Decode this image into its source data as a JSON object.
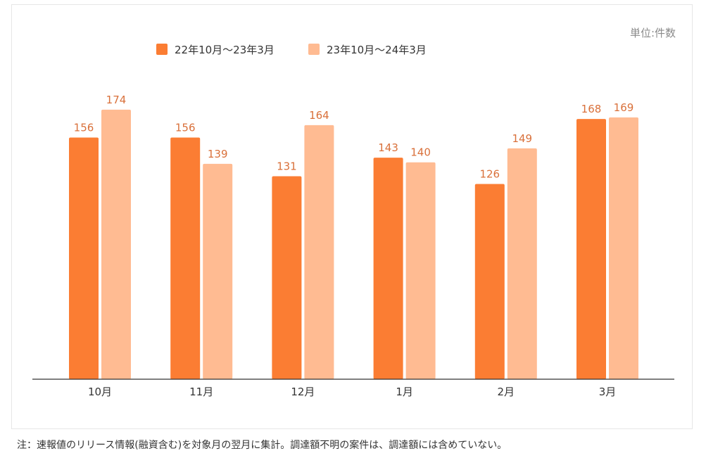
{
  "chart_data": {
    "type": "bar",
    "unit_label": "単位:件数",
    "categories": [
      "10月",
      "11月",
      "12月",
      "1月",
      "2月",
      "3月"
    ],
    "series": [
      {
        "name": "22年10月～23年3月",
        "values": [
          156,
          156,
          131,
          143,
          126,
          168
        ],
        "color": "#fb7d33"
      },
      {
        "name": "23年10月～24年3月",
        "values": [
          174,
          139,
          164,
          140,
          149,
          169
        ],
        "color": "#ffbb92"
      }
    ],
    "ylim": [
      0,
      200
    ],
    "grid": false,
    "data_labels": true,
    "data_label_color": "#d9703a",
    "legend_position": "top-left",
    "axis_color": "#333333",
    "tick_label_color": "#333333"
  },
  "footnote": "注：速報値のリリース情報(融資含む)を対象月の翌月に集計。調達額不明の案件は、調達額には含めていない。"
}
